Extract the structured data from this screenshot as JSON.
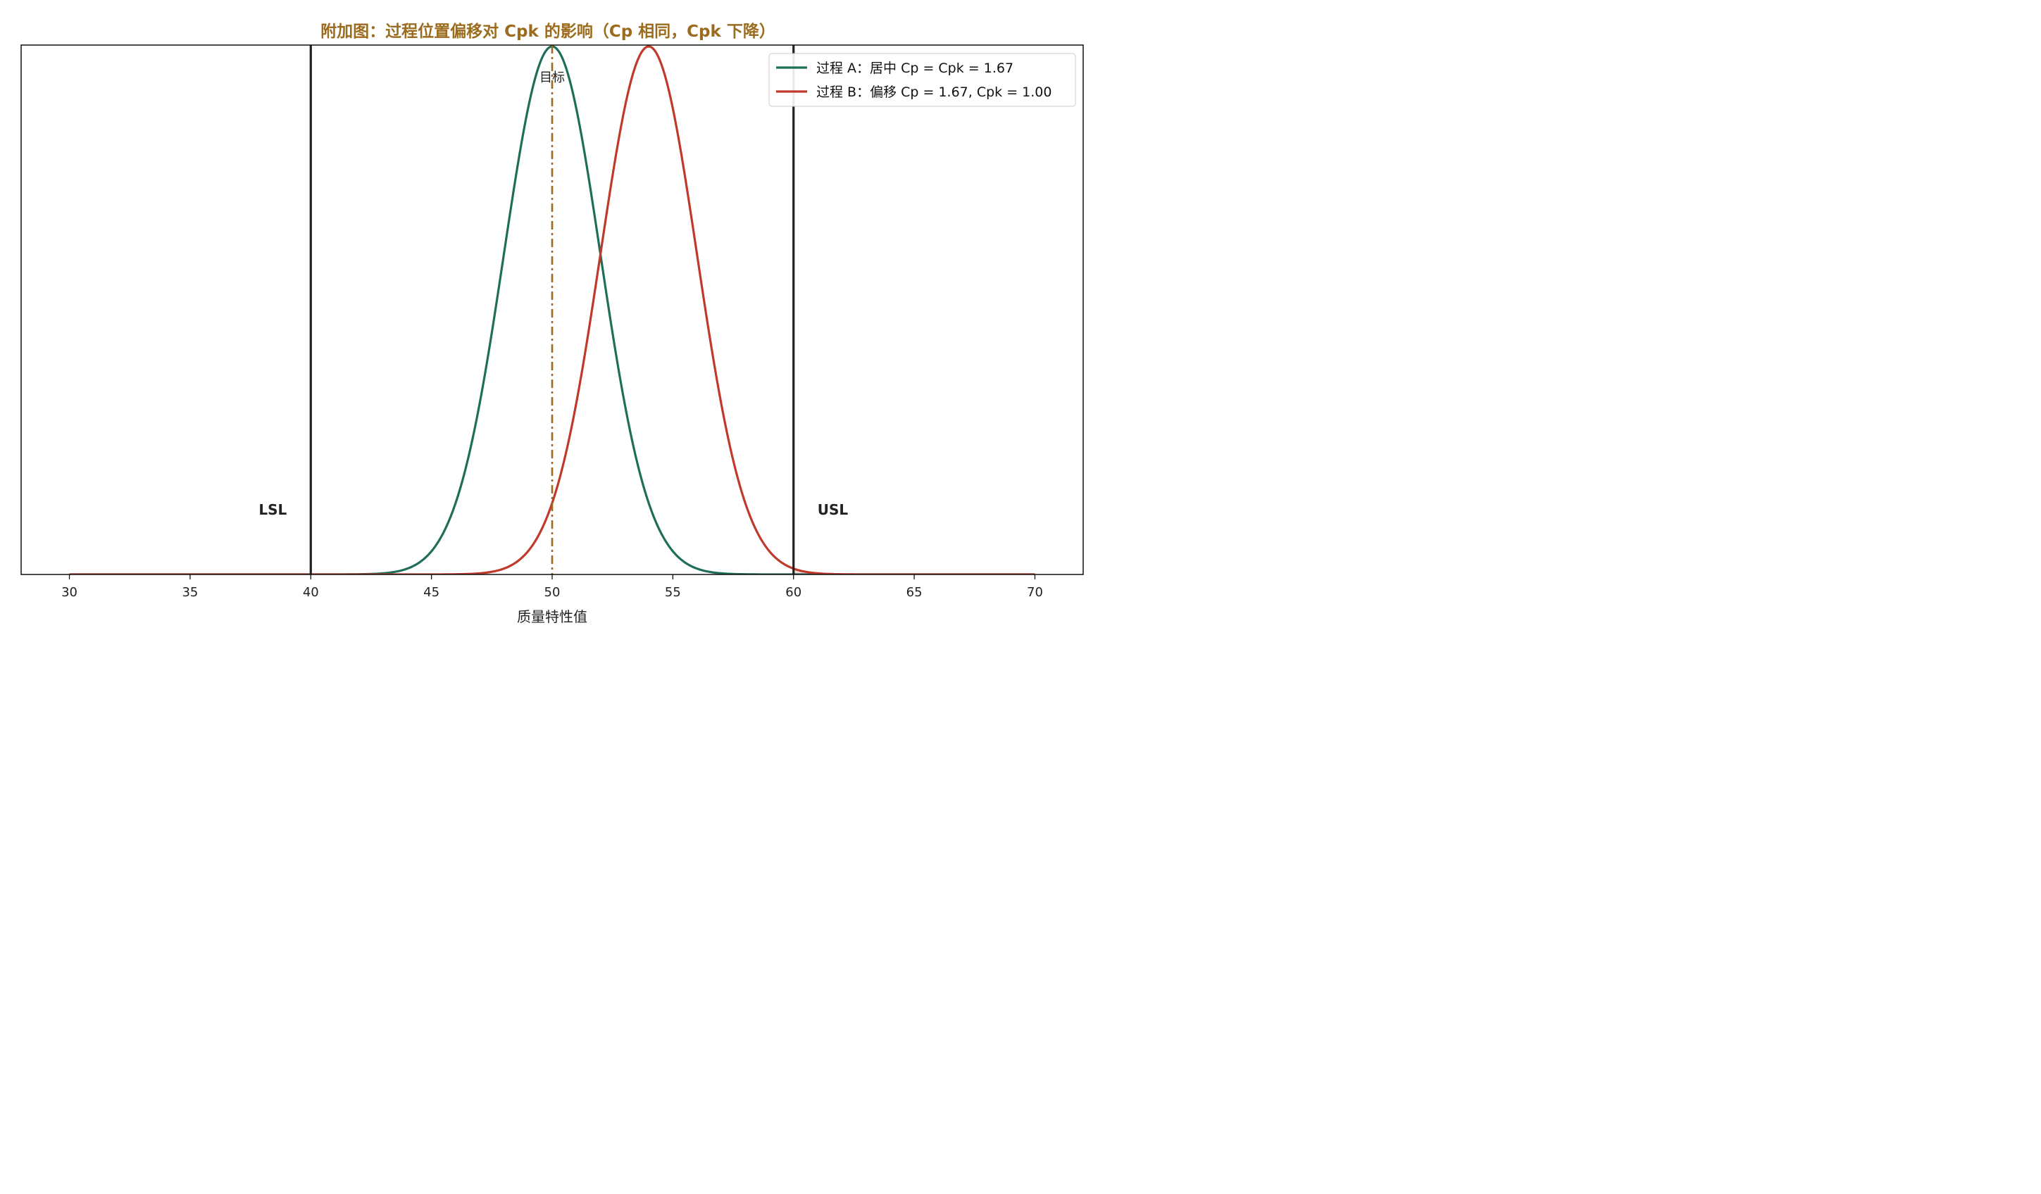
{
  "chart_data": {
    "type": "line",
    "title": "附加图：过程位置偏移对 Cpk 的影响（Cp 相同，Cpk 下降）",
    "xlabel": "质量特性值",
    "ylabel": "",
    "xlim": [
      28,
      72
    ],
    "ylim": [
      0,
      0.2
    ],
    "x_ticks": [
      30,
      35,
      40,
      45,
      50,
      55,
      60,
      65,
      70
    ],
    "x_range": [
      30,
      70
    ],
    "grid": false,
    "legend_position": "top-right",
    "series": [
      {
        "name": "过程 A：居中 Cp = Cpk = 1.67",
        "mean": 50,
        "sd": 2,
        "color": "#1f6e5a"
      },
      {
        "name": "过程 B：偏移 Cp = 1.67, Cpk = 1.00",
        "mean": 54,
        "sd": 2,
        "color": "#c0392b"
      }
    ],
    "reference_lines": [
      {
        "label": "LSL",
        "x": 40,
        "color": "#222222",
        "style": "solid"
      },
      {
        "label": "USL",
        "x": 60,
        "color": "#222222",
        "style": "solid"
      },
      {
        "label": "目标",
        "x": 50,
        "color": "#9b6b1e",
        "style": "dashdot"
      }
    ],
    "shaded_region": {
      "series": 1,
      "from": 60,
      "to": 70,
      "color": "#f2d7d3"
    }
  },
  "colors": {
    "title": "#9b6b1e",
    "axis": "#111111"
  }
}
